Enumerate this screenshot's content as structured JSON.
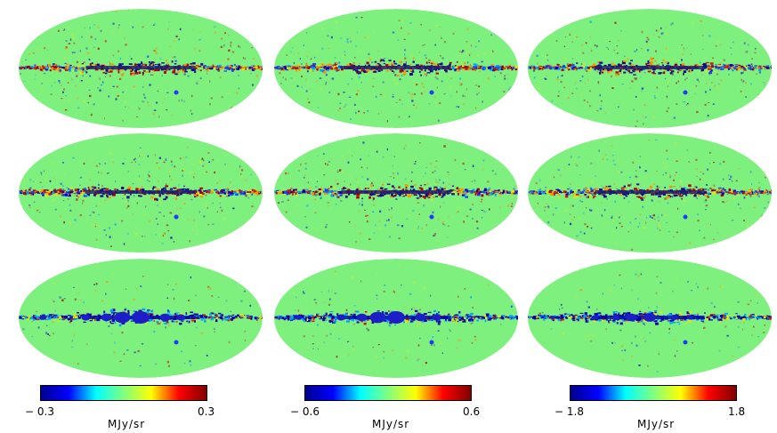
{
  "figure": {
    "rows": 3,
    "columns": 3,
    "map_type": "mollweide all-sky residual maps",
    "background_color": "#7ef07e",
    "accent_colors": [
      "#0000c8",
      "#00a0ff",
      "#e8e800",
      "#ff9000",
      "#b40000"
    ]
  },
  "colorbars": [
    {
      "min_label": "− 0.3",
      "max_label": "0.3",
      "unit": "MJy/sr",
      "colors": [
        "#00008f",
        "#0000ff",
        "#00ffff",
        "#80ff80",
        "#ffff00",
        "#ff0000",
        "#800000"
      ]
    },
    {
      "min_label": "− 0.6",
      "max_label": "0.6",
      "unit": "MJy/sr",
      "colors": [
        "#00008f",
        "#0000ff",
        "#00ffff",
        "#80ff80",
        "#ffff00",
        "#ff0000",
        "#800000"
      ]
    },
    {
      "min_label": "− 1.8",
      "max_label": "1.8",
      "unit": "MJy/sr",
      "colors": [
        "#00008f",
        "#0000ff",
        "#00ffff",
        "#80ff80",
        "#ffff00",
        "#ff0000",
        "#800000"
      ]
    }
  ]
}
